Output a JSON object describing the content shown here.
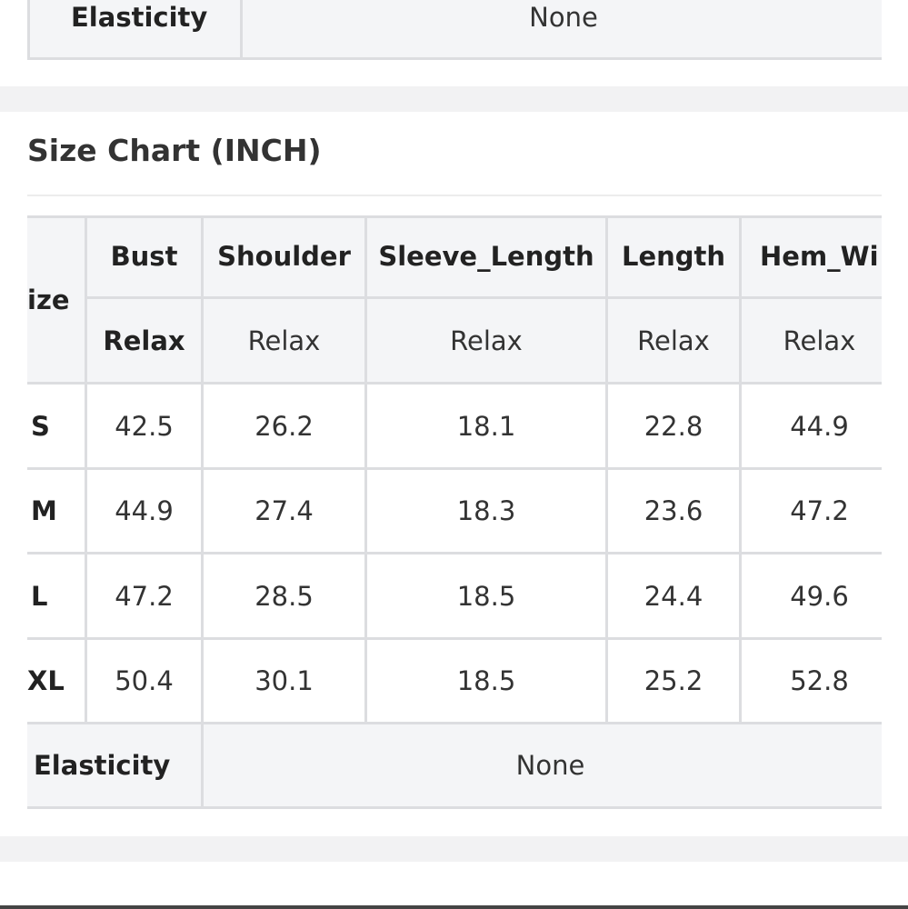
{
  "top_row": {
    "label": "Elasticity",
    "value": "None"
  },
  "title": "Size Chart (INCH)",
  "table": {
    "corner": "ize",
    "columns": [
      "Bust",
      "Shoulder",
      "Sleeve_Length",
      "Length",
      "Hem_Wi"
    ],
    "fit": [
      "Relax",
      "Relax",
      "Relax",
      "Relax",
      "Relax"
    ],
    "rows": [
      [
        "S",
        "42.5",
        "26.2",
        "18.1",
        "22.8",
        "44.9"
      ],
      [
        "M",
        "44.9",
        "27.4",
        "18.3",
        "23.6",
        "47.2"
      ],
      [
        "L",
        "47.2",
        "28.5",
        "18.5",
        "24.4",
        "49.6"
      ],
      [
        "XL",
        "50.4",
        "30.1",
        "18.5",
        "25.2",
        "52.8"
      ]
    ],
    "footer": {
      "label": "Elasticity",
      "value": "None"
    }
  }
}
